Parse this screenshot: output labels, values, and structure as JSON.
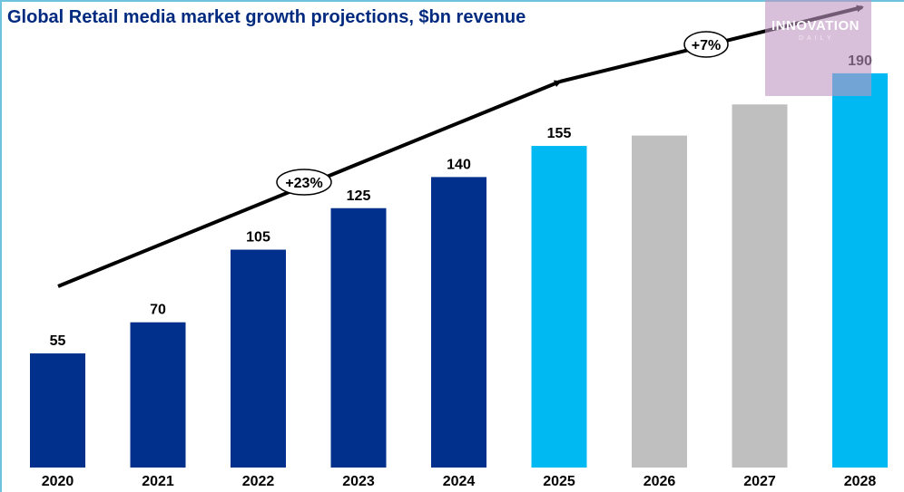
{
  "chart_data": {
    "type": "bar",
    "title": "Global Retail media market growth projections, $bn revenue",
    "xlabel": "",
    "ylabel": "",
    "ylim": [
      0,
      200
    ],
    "grid": false,
    "categories": [
      "2020",
      "2021",
      "2022",
      "2023",
      "2024",
      "2025",
      "2026",
      "2027",
      "2028"
    ],
    "values": [
      55,
      70,
      105,
      125,
      140,
      155,
      160,
      175,
      190
    ],
    "labels": [
      "55",
      "70",
      "105",
      "125",
      "140",
      "155",
      null,
      null,
      "190"
    ],
    "colors": [
      "#00308c",
      "#00308c",
      "#00308c",
      "#00308c",
      "#00308c",
      "#00b9f2",
      "#bfbfbf",
      "#bfbfbf",
      "#00b9f2"
    ],
    "annotations": [
      {
        "text": "+23%",
        "from": "2020",
        "to": "2025"
      },
      {
        "text": "+7%",
        "from": "2025",
        "to": "2028"
      }
    ]
  },
  "watermark": {
    "name": "INNOVATION",
    "sub": "DAILY"
  }
}
